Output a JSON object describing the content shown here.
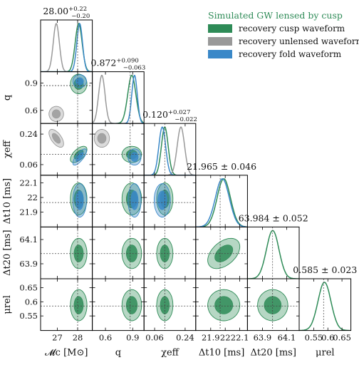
{
  "legend": {
    "title": "Simulated GW lensed by cusp",
    "items": [
      {
        "label": "recovery cusp waveform",
        "color": "#2e8b57"
      },
      {
        "label": "recovery unlensed waveform",
        "color": "#999999"
      },
      {
        "label": "recovery fold waveform",
        "color": "#3a88c8"
      }
    ]
  },
  "chart_data": {
    "type": "corner",
    "parameters": [
      {
        "name": "M_c",
        "axis_label": "𝓜c [M⊙]",
        "range": [
          26.2,
          28.7
        ],
        "ticks": [
          27,
          28
        ],
        "truth": 28.0,
        "title": {
          "median": "28.00",
          "plus": "+0.22",
          "minus": "−0.20"
        }
      },
      {
        "name": "q",
        "axis_label": "q",
        "range": [
          0.46,
          1.02
        ],
        "ticks": [
          0.6,
          0.9
        ],
        "truth": 0.872,
        "title": {
          "median": "0.872",
          "plus": "+0.090",
          "minus": "−0.063"
        }
      },
      {
        "name": "chi_eff",
        "axis_label": "χeff",
        "range": [
          0.0,
          0.3
        ],
        "ticks": [
          0.06,
          0.24
        ],
        "truth": 0.12,
        "title": {
          "median": "0.120",
          "plus": "+0.027",
          "minus": "−0.022"
        }
      },
      {
        "name": "dt10",
        "axis_label": "Δt10 [ms]",
        "range": [
          21.8,
          22.15
        ],
        "ticks": [
          21.9,
          22.0,
          22.1
        ],
        "truth": 21.965,
        "title": {
          "median": "21.965",
          "pm": "± 0.046"
        }
      },
      {
        "name": "dt20",
        "axis_label": "Δt20 [ms]",
        "range": [
          63.78,
          64.2
        ],
        "ticks": [
          63.9,
          64.1
        ],
        "truth": 63.984,
        "title": {
          "median": "63.984",
          "pm": "± 0.052"
        }
      },
      {
        "name": "mu_rel",
        "axis_label": "μrel",
        "range": [
          0.5,
          0.68
        ],
        "ticks": [
          0.55,
          0.6,
          0.65
        ],
        "truth": 0.585,
        "title": {
          "median": "0.585",
          "pm": "± 0.023"
        }
      }
    ],
    "series": [
      {
        "name": "recovery cusp waveform",
        "color": "#2e8b57",
        "mean": [
          28.05,
          0.89,
          0.12,
          21.99,
          63.985,
          0.588
        ],
        "sigma": [
          0.17,
          0.045,
          0.02,
          0.046,
          0.052,
          0.023
        ]
      },
      {
        "name": "recovery unlensed waveform",
        "color": "#999999",
        "mean": [
          26.95,
          0.56,
          0.215
        ],
        "sigma": [
          0.15,
          0.035,
          0.022
        ]
      },
      {
        "name": "recovery fold waveform",
        "color": "#3a88c8",
        "mean": [
          28.1,
          0.92,
          0.105,
          21.98
        ],
        "sigma": [
          0.14,
          0.03,
          0.02,
          0.048
        ]
      }
    ],
    "correlations": [
      {
        "i": 2,
        "j": 0,
        "series": "recovery unlensed waveform",
        "rho": -0.6
      },
      {
        "i": 2,
        "j": 0,
        "series": "recovery fold waveform",
        "rho": 0.75
      },
      {
        "i": 2,
        "j": 0,
        "series": "recovery cusp waveform",
        "rho": 0.6
      },
      {
        "i": 4,
        "j": 3,
        "series": "recovery cusp waveform",
        "rho": 0.45
      }
    ]
  }
}
